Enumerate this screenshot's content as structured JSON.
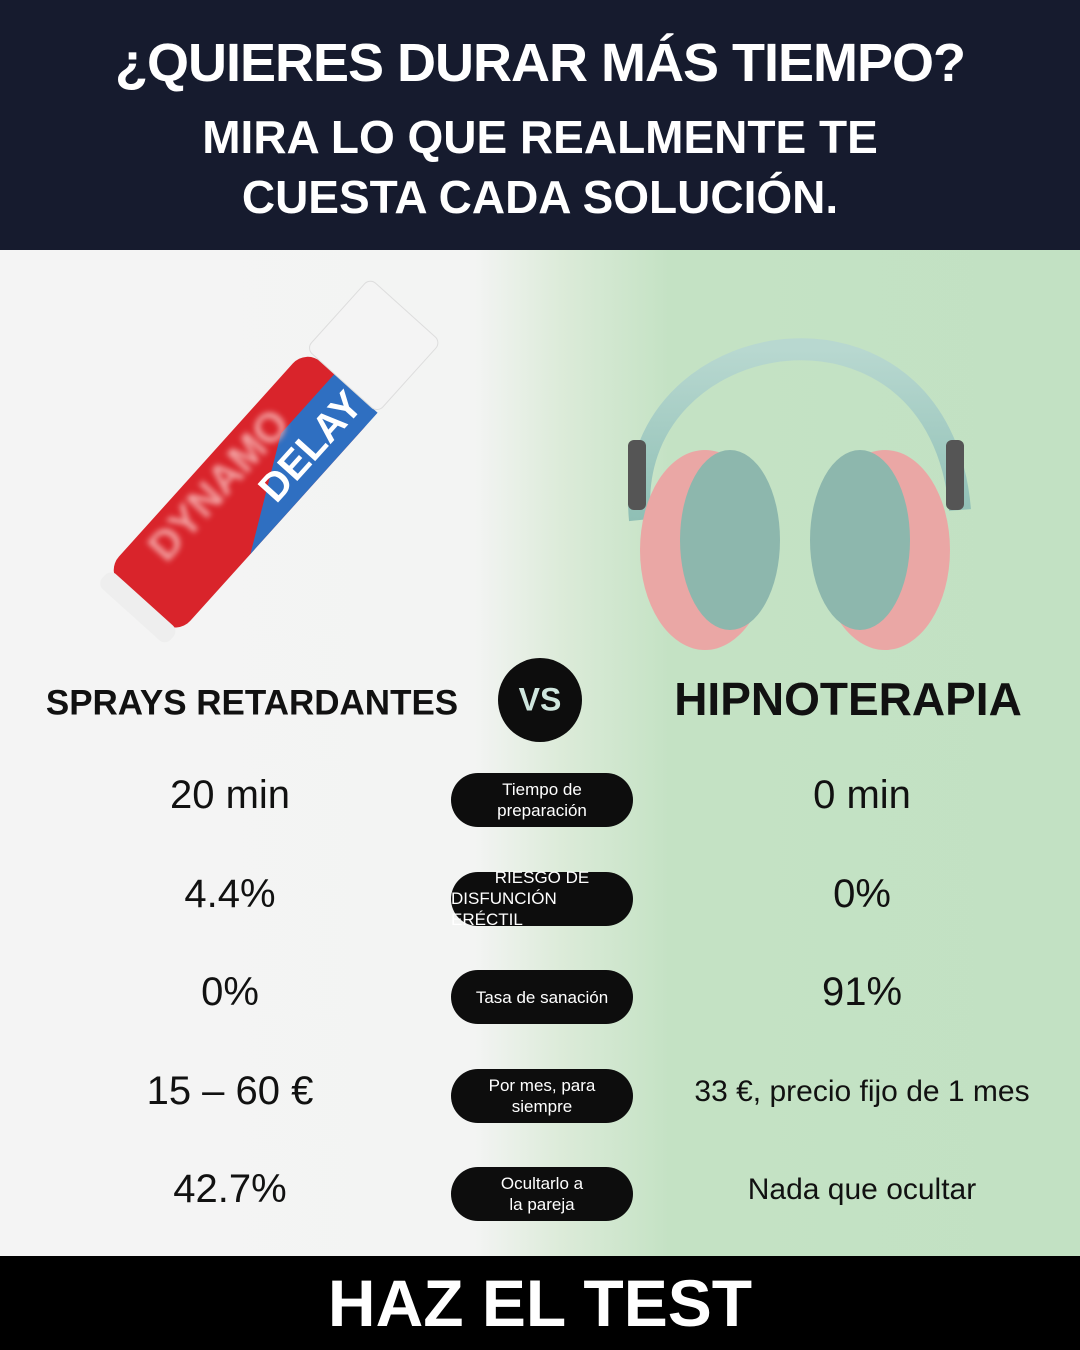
{
  "header": {
    "title": "¿QUIERES DURAR MÁS TIEMPO?",
    "subtitle_lines": [
      "MIRA LO QUE REALMENTE TE",
      "CUESTA CADA SOLUCIÓN."
    ]
  },
  "product_labels": [
    "DYNAMO",
    "DELAY"
  ],
  "left_name": "SPRAYS RETARDANTES",
  "vs": "VS",
  "right_name": "HIPNOTERAPIA",
  "rows": [
    {
      "left": "20 min",
      "label_lines": [
        "Tiempo de",
        "preparación"
      ],
      "right": "0 min"
    },
    {
      "left": "4.4%",
      "label_lines": [
        "RIESGO DE",
        "DISFUNCIÓN ERÉCTIL"
      ],
      "right": "0%"
    },
    {
      "left": "0%",
      "label_lines": [
        "Tasa de sanación"
      ],
      "right": "91%"
    },
    {
      "left": "15 – 60 €",
      "label_lines": [
        "Por mes, para",
        "siempre"
      ],
      "right": "33 €, precio fijo de 1 mes"
    },
    {
      "left": "42.7%",
      "label_lines": [
        "Ocultarlo a",
        "la pareja"
      ],
      "right": "Nada que ocultar"
    }
  ],
  "cta": "HAZ EL TEST"
}
